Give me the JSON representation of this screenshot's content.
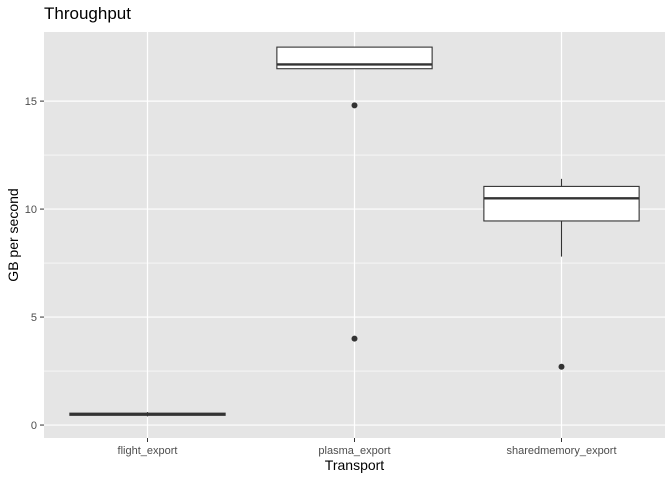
{
  "chart_data": {
    "type": "box",
    "title": "Throughput",
    "xlabel": "Transport",
    "ylabel": "GB per second",
    "ylim": [
      -0.6,
      18.2
    ],
    "yticks": [
      0,
      5,
      10,
      15
    ],
    "ytick_labels": [
      "0",
      "5",
      "10",
      "15"
    ],
    "categories": [
      "flight_export",
      "plasma_export",
      "sharedmemory_export"
    ],
    "boxes": [
      {
        "category": "flight_export",
        "whisker_low": 0.4,
        "q1": 0.45,
        "median": 0.5,
        "q3": 0.55,
        "whisker_high": 0.6,
        "outliers": []
      },
      {
        "category": "plasma_export",
        "whisker_low": 16.5,
        "q1": 16.5,
        "median": 16.7,
        "q3": 17.5,
        "whisker_high": 17.5,
        "outliers": [
          14.8,
          4.0
        ]
      },
      {
        "category": "sharedmemory_export",
        "whisker_low": 7.8,
        "q1": 9.45,
        "median": 10.5,
        "q3": 11.05,
        "whisker_high": 11.4,
        "outliers": [
          2.7
        ]
      }
    ],
    "grid": true,
    "colors": {
      "panel": "#e5e5e5",
      "grid": "#ffffff",
      "box_fill": "#ffffff",
      "box_line": "#333333",
      "outlier": "#333333"
    }
  }
}
